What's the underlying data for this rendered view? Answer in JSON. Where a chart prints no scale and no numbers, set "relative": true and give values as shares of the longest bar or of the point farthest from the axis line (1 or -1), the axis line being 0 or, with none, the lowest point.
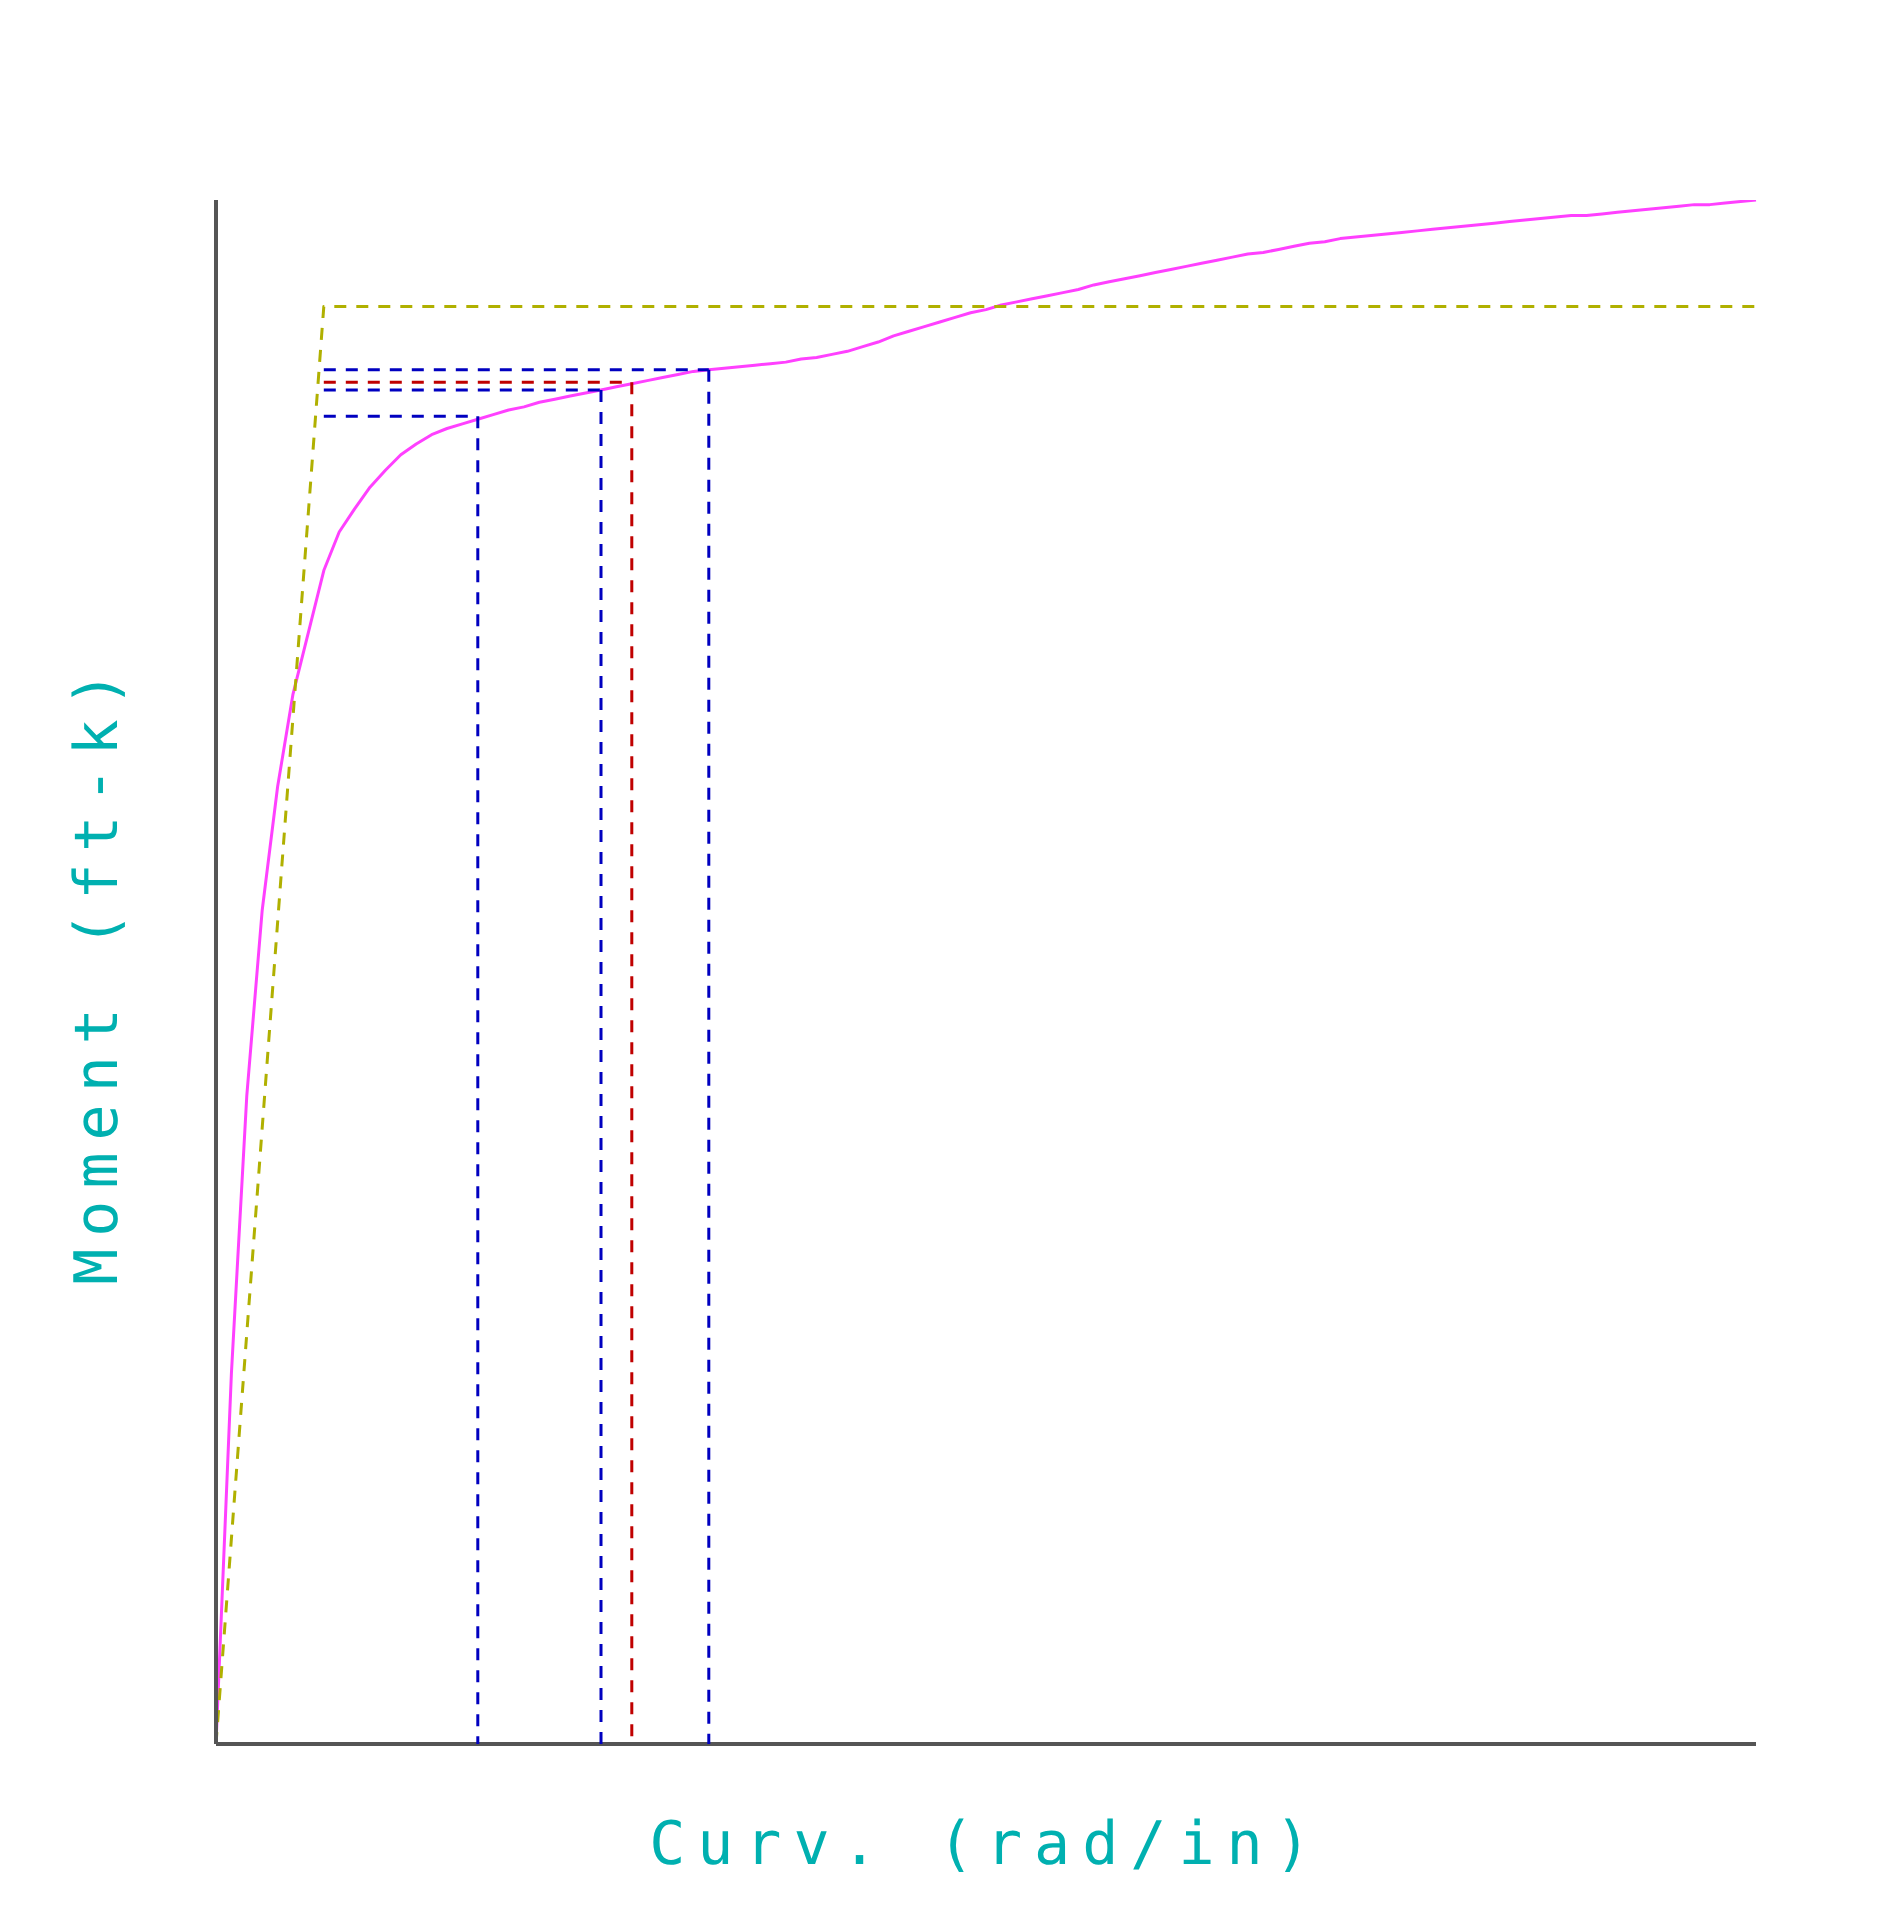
{
  "chart_data": {
    "type": "line",
    "relative": true,
    "xlabel": "Curv. (rad/in)",
    "ylabel": "Moment (ft-k)",
    "marker": "none",
    "categories": [
      null,
      null,
      null,
      null,
      null,
      null,
      null,
      null,
      null,
      null,
      null,
      null,
      null,
      null,
      null,
      null,
      null,
      null,
      null,
      null,
      null,
      null,
      null,
      null,
      null,
      null,
      null,
      null,
      null,
      null,
      null,
      null,
      null,
      null,
      null,
      null,
      null,
      null,
      null,
      null,
      null,
      null,
      null,
      null,
      null,
      null,
      null,
      null,
      null,
      null,
      null,
      null,
      null,
      null,
      null,
      null,
      null,
      null,
      null,
      null,
      null,
      null,
      null,
      null,
      null,
      null,
      null,
      null,
      null,
      null,
      null,
      null,
      null,
      null,
      null,
      null,
      null,
      null,
      null,
      null,
      null,
      null,
      null,
      null,
      null,
      null,
      null,
      null,
      null,
      null,
      null,
      null,
      null,
      null,
      null,
      null,
      null,
      null,
      null,
      null,
      null
    ],
    "series": [
      {
        "color": "#ff40ff",
        "line_style": "solid",
        "values": [
          0,
          0.24,
          0.42,
          0.54,
          0.62,
          0.68,
          0.72,
          0.76,
          0.785,
          0.8,
          0.814,
          0.825,
          0.835,
          0.842,
          0.848,
          0.852,
          0.855,
          0.858,
          0.861,
          0.864,
          0.866,
          0.869,
          0.871,
          0.873,
          0.875,
          0.877,
          0.879,
          0.881,
          0.883,
          0.885,
          0.887,
          0.889,
          0.89,
          0.891,
          0.892,
          0.893,
          0.894,
          0.895,
          0.897,
          0.898,
          0.9,
          0.902,
          0.905,
          0.908,
          0.912,
          0.915,
          0.918,
          0.921,
          0.924,
          0.927,
          0.929,
          0.932,
          0.934,
          0.936,
          0.938,
          0.94,
          0.942,
          0.945,
          0.947,
          0.949,
          0.951,
          0.953,
          0.955,
          0.957,
          0.959,
          0.961,
          0.963,
          0.965,
          0.966,
          0.968,
          0.97,
          0.972,
          0.973,
          0.975,
          0.976,
          0.977,
          0.978,
          0.979,
          0.98,
          0.981,
          0.982,
          0.983,
          0.984,
          0.985,
          0.986,
          0.987,
          0.988,
          0.989,
          0.99,
          0.99,
          0.991,
          0.992,
          0.993,
          0.994,
          0.995,
          0.996,
          0.997,
          0.997,
          0.998,
          0.999,
          1
        ]
      },
      {
        "color": "#b0b000",
        "line_style": "dashed",
        "values": [
          0,
          0.133,
          0.266,
          0.399,
          0.532,
          0.665,
          0.798,
          0.931,
          0.931,
          0.931,
          0.931,
          0.931,
          0.931,
          0.931,
          0.931,
          0.931,
          0.931,
          0.931,
          0.931,
          0.931,
          0.931,
          0.931,
          0.931,
          0.931,
          0.931,
          0.931,
          0.931,
          0.931,
          0.931,
          0.931,
          0.931,
          0.931,
          0.931,
          0.931,
          0.931,
          0.931,
          0.931,
          0.931,
          0.931,
          0.931,
          0.931,
          0.931,
          0.931,
          0.931,
          0.931,
          0.931,
          0.931,
          0.931,
          0.931,
          0.931,
          0.931,
          0.931,
          0.931,
          0.931,
          0.931,
          0.931,
          0.931,
          0.931,
          0.931,
          0.931,
          0.931,
          0.931,
          0.931,
          0.931,
          0.931,
          0.931,
          0.931,
          0.931,
          0.931,
          0.931,
          0.931,
          0.931,
          0.931,
          0.931,
          0.931,
          0.931,
          0.931,
          0.931,
          0.931,
          0.931,
          0.931,
          0.931,
          0.931,
          0.931,
          0.931,
          0.931,
          0.931,
          0.931,
          0.931,
          0.931,
          0.931,
          0.931,
          0.931,
          0.931,
          0.931,
          0.931,
          0.931,
          0.931,
          0.931,
          0.931,
          0.931
        ]
      },
      {
        "color": "#0000c0",
        "line_style": "dashed",
        "values": [
          null,
          null,
          null,
          null,
          null,
          null,
          null,
          0.86,
          0.86,
          0.86,
          0.86,
          0.86,
          0.86,
          0.86,
          0.86,
          0.86,
          0.86,
          0.86,
          null,
          null,
          null,
          null,
          null,
          null,
          null,
          null,
          null,
          null,
          null,
          null,
          null,
          null,
          null,
          null,
          null,
          null,
          null,
          null,
          null,
          null,
          null,
          null,
          null,
          null,
          null,
          null,
          null,
          null,
          null,
          null,
          null,
          null,
          null,
          null,
          null,
          null,
          null,
          null,
          null,
          null,
          null,
          null,
          null,
          null,
          null,
          null,
          null,
          null,
          null,
          null,
          null,
          null,
          null,
          null,
          null,
          null,
          null,
          null,
          null,
          null,
          null,
          null,
          null,
          null,
          null,
          null,
          null,
          null,
          null,
          null,
          null,
          null,
          null,
          null,
          null,
          null,
          null,
          null,
          null,
          null,
          null
        ]
      },
      {
        "color": "#0000c0",
        "line_style": "dashed",
        "values": [
          null,
          null,
          null,
          null,
          null,
          null,
          null,
          0.877,
          0.877,
          0.877,
          0.877,
          0.877,
          0.877,
          0.877,
          0.877,
          0.877,
          0.877,
          0.877,
          0.877,
          0.877,
          0.877,
          0.877,
          0.877,
          0.877,
          0.877,
          0.877,
          null,
          null,
          null,
          null,
          null,
          null,
          null,
          null,
          null,
          null,
          null,
          null,
          null,
          null,
          null,
          null,
          null,
          null,
          null,
          null,
          null,
          null,
          null,
          null,
          null,
          null,
          null,
          null,
          null,
          null,
          null,
          null,
          null,
          null,
          null,
          null,
          null,
          null,
          null,
          null,
          null,
          null,
          null,
          null,
          null,
          null,
          null,
          null,
          null,
          null,
          null,
          null,
          null,
          null,
          null,
          null,
          null,
          null,
          null,
          null,
          null,
          null,
          null,
          null,
          null,
          null,
          null,
          null,
          null,
          null,
          null,
          null,
          null,
          null,
          null
        ]
      },
      {
        "color": "#c00000",
        "line_style": "dashed",
        "values": [
          null,
          null,
          null,
          null,
          null,
          null,
          null,
          0.882,
          0.882,
          0.882,
          0.882,
          0.882,
          0.882,
          0.882,
          0.882,
          0.882,
          0.882,
          0.882,
          0.882,
          0.882,
          0.882,
          0.882,
          0.882,
          0.882,
          0.882,
          0.882,
          0.882,
          0.882,
          null,
          null,
          null,
          null,
          null,
          null,
          null,
          null,
          null,
          null,
          null,
          null,
          null,
          null,
          null,
          null,
          null,
          null,
          null,
          null,
          null,
          null,
          null,
          null,
          null,
          null,
          null,
          null,
          null,
          null,
          null,
          null,
          null,
          null,
          null,
          null,
          null,
          null,
          null,
          null,
          null,
          null,
          null,
          null,
          null,
          null,
          null,
          null,
          null,
          null,
          null,
          null,
          null,
          null,
          null,
          null,
          null,
          null,
          null,
          null,
          null,
          null,
          null,
          null,
          null,
          null,
          null,
          null,
          null,
          null,
          null,
          null,
          null
        ]
      },
      {
        "color": "#0000c0",
        "line_style": "dashed",
        "values": [
          null,
          null,
          null,
          null,
          null,
          null,
          null,
          0.89,
          0.89,
          0.89,
          0.89,
          0.89,
          0.89,
          0.89,
          0.89,
          0.89,
          0.89,
          0.89,
          0.89,
          0.89,
          0.89,
          0.89,
          0.89,
          0.89,
          0.89,
          0.89,
          0.89,
          0.89,
          0.89,
          0.89,
          0.89,
          0.89,
          0.89,
          null,
          null,
          null,
          null,
          null,
          null,
          null,
          null,
          null,
          null,
          null,
          null,
          null,
          null,
          null,
          null,
          null,
          null,
          null,
          null,
          null,
          null,
          null,
          null,
          null,
          null,
          null,
          null,
          null,
          null,
          null,
          null,
          null,
          null,
          null,
          null,
          null,
          null,
          null,
          null,
          null,
          null,
          null,
          null,
          null,
          null,
          null,
          null,
          null,
          null,
          null,
          null,
          null,
          null,
          null,
          null,
          null,
          null,
          null,
          null,
          null,
          null,
          null,
          null,
          null,
          null,
          null,
          null
        ]
      }
    ]
  }
}
